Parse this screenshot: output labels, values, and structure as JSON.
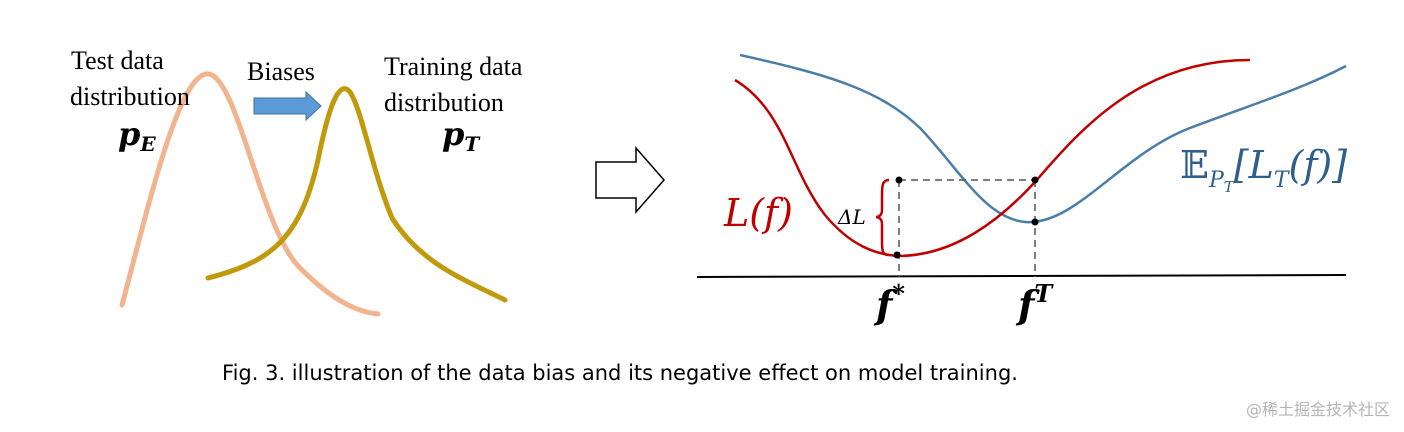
{
  "left_panel": {
    "test_label_line1": "Test data",
    "test_label_line2": "distribution",
    "test_symbol": "p",
    "test_symbol_sub": "E",
    "bias_label": "Biases",
    "train_label_line1": "Training data",
    "train_label_line2": "distribution",
    "train_symbol": "p",
    "train_symbol_sub": "T"
  },
  "right_panel": {
    "loss_label": "L(f)",
    "expected_label_bb": "𝔼",
    "expected_label_sub": "P",
    "expected_label_subsub": "T",
    "expected_label_rest": "[L",
    "expected_label_rest_sub": "T",
    "expected_label_end": "(f)]",
    "delta_label": "ΔL",
    "f_star": "f",
    "f_star_sup": "*",
    "f_T": "f",
    "f_T_sup": "T"
  },
  "caption": "Fig. 3.  illustration of the data bias and its negative effect on model training.",
  "watermark": "@稀土掘金技术社区",
  "colors": {
    "test_curve": "#f2b48e",
    "train_curve": "#c19a0b",
    "bias_arrow": "#5b9bd5",
    "loss_curve": "#c00000",
    "expected_curve": "#4a7ea8",
    "expected_label": "#2e5f8a",
    "loss_label": "#c00000"
  }
}
